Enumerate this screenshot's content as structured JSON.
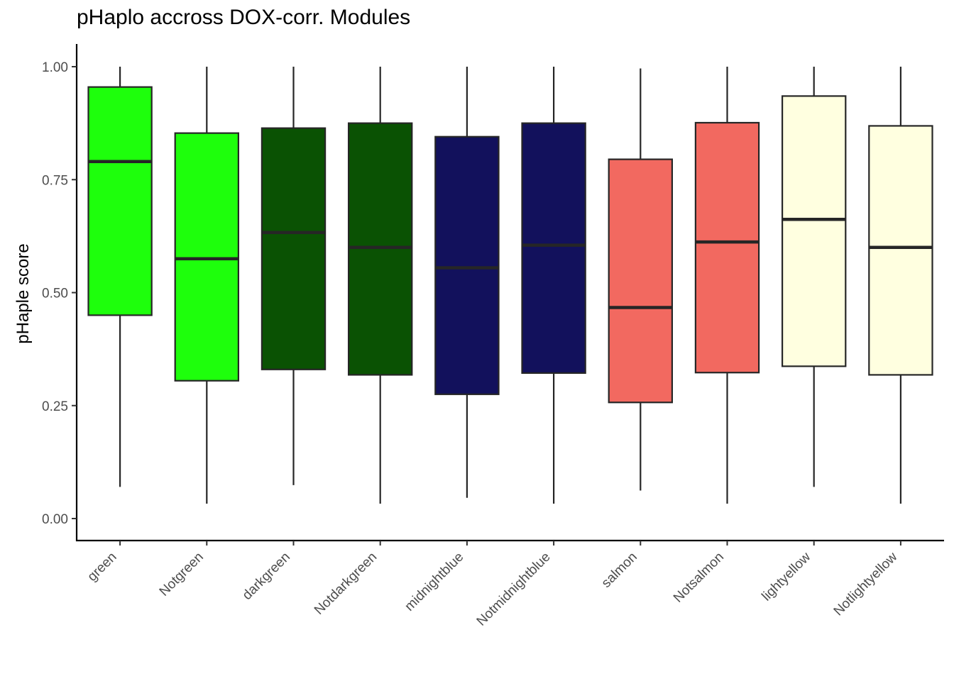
{
  "chart_data": {
    "type": "box",
    "title": "pHaplo accross DOX-corr. Modules",
    "xlabel": "",
    "ylabel": "pHaple score",
    "ylim": [
      -0.05,
      1.05
    ],
    "yticks": [
      "0.00",
      "0.25",
      "0.50",
      "0.75",
      "1.00"
    ],
    "yticks_values": [
      0,
      0.25,
      0.5,
      0.75,
      1.0
    ],
    "grid": false,
    "legend": "none",
    "categories": [
      "green",
      "Notgreen",
      "darkgreen",
      "Notdarkgreen",
      "midnightblue",
      "Notmidnightblue",
      "salmon",
      "Notsalmon",
      "lightyellow",
      "Notlightyellow"
    ],
    "boxes": [
      {
        "min": 0.07,
        "q1": 0.45,
        "median": 0.79,
        "q3": 0.955,
        "max": 1.0,
        "color": "#1EFF0C"
      },
      {
        "min": 0.033,
        "q1": 0.305,
        "median": 0.575,
        "q3": 0.853,
        "max": 1.0,
        "color": "#1EFF0C"
      },
      {
        "min": 0.074,
        "q1": 0.33,
        "median": 0.633,
        "q3": 0.864,
        "max": 1.0,
        "color": "#0A5203"
      },
      {
        "min": 0.033,
        "q1": 0.318,
        "median": 0.6,
        "q3": 0.875,
        "max": 1.0,
        "color": "#0A5203"
      },
      {
        "min": 0.046,
        "q1": 0.275,
        "median": 0.555,
        "q3": 0.845,
        "max": 1.0,
        "color": "#12115C"
      },
      {
        "min": 0.033,
        "q1": 0.322,
        "median": 0.605,
        "q3": 0.875,
        "max": 1.0,
        "color": "#12115C"
      },
      {
        "min": 0.062,
        "q1": 0.257,
        "median": 0.467,
        "q3": 0.795,
        "max": 0.996,
        "color": "#F26960"
      },
      {
        "min": 0.033,
        "q1": 0.323,
        "median": 0.612,
        "q3": 0.876,
        "max": 1.0,
        "color": "#F26960"
      },
      {
        "min": 0.07,
        "q1": 0.337,
        "median": 0.662,
        "q3": 0.935,
        "max": 1.0,
        "color": "#FFFFE0"
      },
      {
        "min": 0.033,
        "q1": 0.318,
        "median": 0.6,
        "q3": 0.869,
        "max": 1.0,
        "color": "#FFFFE0"
      }
    ]
  }
}
